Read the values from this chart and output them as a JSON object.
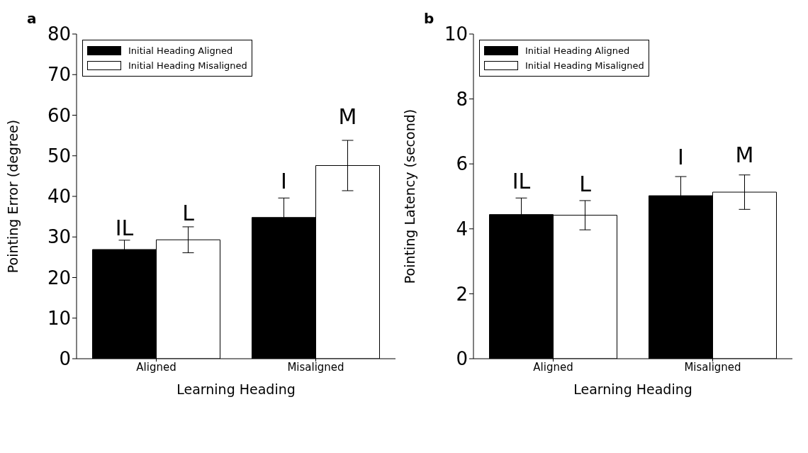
{
  "chart_data": [
    {
      "type": "bar",
      "title": "a",
      "xlabel": "Learning Heading",
      "ylabel": "Pointing Error (degree)",
      "categories": [
        "Aligned",
        "Misaligned"
      ],
      "series": [
        {
          "name": "Initial Heading Aligned",
          "color": "#000000",
          "values": [
            26.9,
            34.8
          ],
          "errors": [
            2.3,
            4.8
          ]
        },
        {
          "name": "Initial Heading Misaligned",
          "color": "#ffffff",
          "values": [
            29.3,
            47.6
          ],
          "errors": [
            3.2,
            6.2
          ]
        }
      ],
      "ylim": [
        0,
        80
      ],
      "yticks": [
        0,
        10,
        20,
        30,
        40,
        50,
        60,
        70,
        80
      ],
      "grid": false,
      "legend": "top left",
      "annotations": [
        "IL",
        "L",
        "I",
        "M"
      ]
    },
    {
      "type": "bar",
      "title": "b",
      "xlabel": "Learning Heading",
      "ylabel": "Pointing Latency (second)",
      "categories": [
        "Aligned",
        "Misaligned"
      ],
      "series": [
        {
          "name": "Initial Heading Aligned",
          "color": "#000000",
          "values": [
            4.44,
            5.02
          ],
          "errors": [
            0.51,
            0.59
          ]
        },
        {
          "name": "Initial Heading Misaligned",
          "color": "#ffffff",
          "values": [
            4.42,
            5.13
          ],
          "errors": [
            0.45,
            0.53
          ]
        }
      ],
      "ylim": [
        0,
        10
      ],
      "yticks": [
        0,
        2,
        4,
        6,
        8,
        10
      ],
      "grid": false,
      "legend": "top left",
      "annotations": [
        "IL",
        "L",
        "I",
        "M"
      ]
    }
  ]
}
